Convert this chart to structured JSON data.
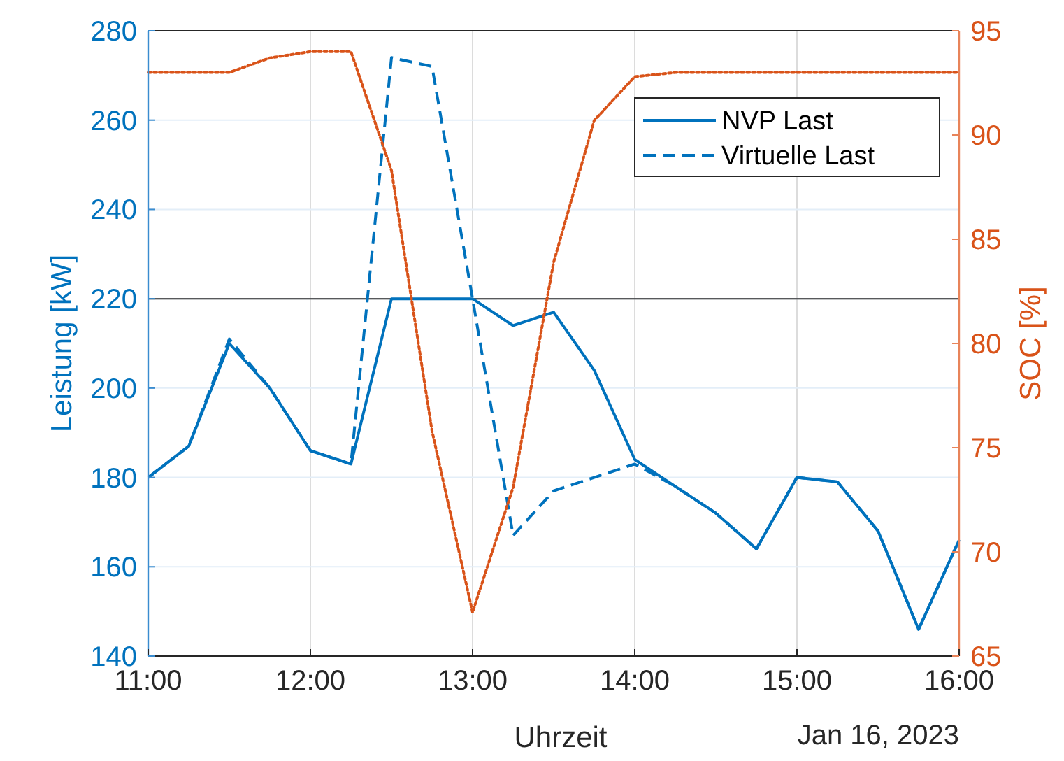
{
  "chart_data": {
    "type": "line",
    "xlabel": "Uhrzeit",
    "ylabel": "Leistung [kW]",
    "y2label": "SOC [%]",
    "x": [
      11,
      11.25,
      11.5,
      11.75,
      12,
      12.25,
      12.5,
      12.75,
      13,
      13.25,
      13.5,
      13.75,
      14,
      14.25,
      14.5,
      14.75,
      15,
      15.25,
      15.5,
      15.75,
      16
    ],
    "xlim": [
      11,
      16
    ],
    "xticks": [
      {
        "value": 11,
        "label": "11:00"
      },
      {
        "value": 12,
        "label": "12:00"
      },
      {
        "value": 13,
        "label": "13:00"
      },
      {
        "value": 14,
        "label": "14:00"
      },
      {
        "value": 15,
        "label": "15:00"
      },
      {
        "value": 16,
        "label": "16:00"
      }
    ],
    "ylim": [
      140,
      280
    ],
    "yticks": [
      140,
      160,
      180,
      200,
      220,
      240,
      260,
      280
    ],
    "y2lim": [
      65,
      95
    ],
    "y2ticks": [
      65,
      70,
      75,
      80,
      85,
      90,
      95
    ],
    "series": [
      {
        "name": "NVP Last",
        "color": "#0072bd",
        "line_style": "solid",
        "values": [
          180,
          187,
          210,
          200,
          186,
          183,
          220,
          220,
          220,
          214,
          217,
          204,
          184,
          178,
          172,
          164,
          180,
          179,
          168,
          146,
          166
        ]
      },
      {
        "name": "Virtuelle Last",
        "color": "#0072bd",
        "line_style": "dashed",
        "values": [
          180,
          187,
          211,
          200,
          186,
          183,
          274,
          272,
          220,
          167,
          177,
          180,
          183,
          178,
          172,
          164,
          180,
          179,
          168,
          146,
          166
        ]
      },
      {
        "color": "#d95319",
        "line_style": "dotted",
        "axis": "y2",
        "values": [
          93,
          93,
          93,
          93.7,
          94,
          94,
          88.3,
          75.8,
          67.1,
          73.1,
          83.9,
          90.7,
          92.8,
          93,
          93,
          93,
          93,
          93,
          93,
          93,
          93
        ]
      }
    ],
    "ref_lines": [
      {
        "axis": "y",
        "value": 220,
        "color": "#262626",
        "line_style": "solid"
      }
    ],
    "annotations": [
      "Jan 16, 2023"
    ],
    "grid": true,
    "legend": "top right"
  }
}
